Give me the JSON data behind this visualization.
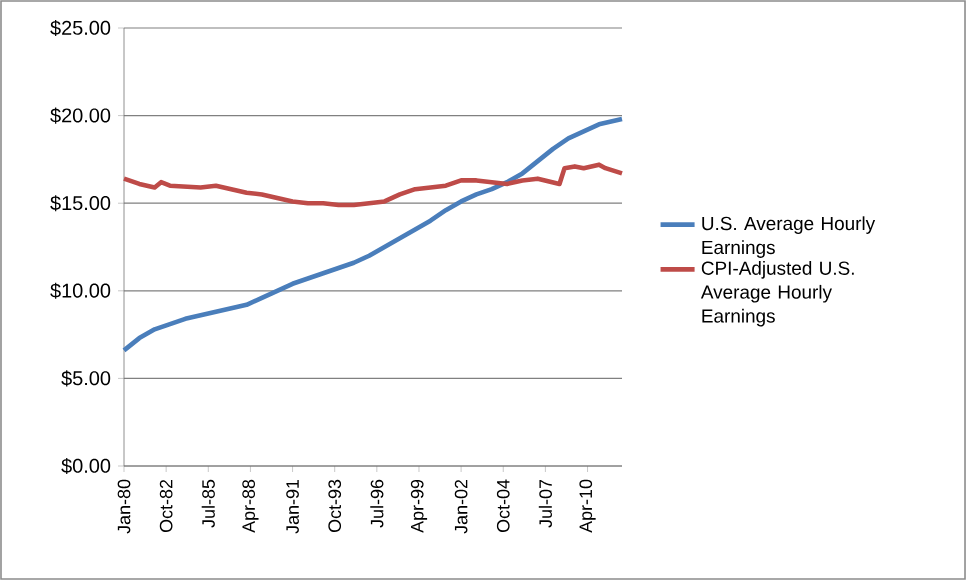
{
  "chart_data": {
    "type": "line",
    "x": [
      "1980-01",
      "1981-01",
      "1982-01",
      "1983-01",
      "1984-01",
      "1985-01",
      "1986-01",
      "1987-01",
      "1988-01",
      "1989-01",
      "1990-01",
      "1991-01",
      "1992-01",
      "1993-01",
      "1994-01",
      "1995-01",
      "1996-01",
      "1997-01",
      "1998-01",
      "1999-01",
      "2000-01",
      "2001-01",
      "2002-01",
      "2003-01",
      "2004-01",
      "2005-01",
      "2006-01",
      "2007-01",
      "2008-01",
      "2009-01",
      "2010-01",
      "2011-01",
      "2012-07"
    ],
    "series": [
      {
        "name": "U.S. Average Hourly Earnings",
        "color": "#4a7ebb",
        "values": [
          6.6,
          7.3,
          7.8,
          8.1,
          8.4,
          8.6,
          8.8,
          9.0,
          9.2,
          9.6,
          10.0,
          10.4,
          10.7,
          11.0,
          11.3,
          11.6,
          12.0,
          12.5,
          13.0,
          13.5,
          14.0,
          14.6,
          15.1,
          15.5,
          15.8,
          16.2,
          16.7,
          17.4,
          18.1,
          18.7,
          19.1,
          19.5,
          19.8
        ]
      },
      {
        "name": "CPI-Adjusted U.S. Average Hourly Earnings",
        "color": "#be4b48",
        "x": [
          "1980-01",
          "1981-01",
          "1982-01",
          "1982-06",
          "1983-01",
          "1985-01",
          "1986-01",
          "1987-01",
          "1988-01",
          "1989-01",
          "1990-01",
          "1991-01",
          "1992-01",
          "1993-01",
          "1994-01",
          "1995-01",
          "1996-01",
          "1997-01",
          "1998-01",
          "1999-01",
          "2000-01",
          "2001-01",
          "2002-01",
          "2003-01",
          "2004-01",
          "2005-01",
          "2006-01",
          "2007-01",
          "2008-06",
          "2008-10",
          "2009-06",
          "2010-01",
          "2011-01",
          "2011-06",
          "2012-07"
        ],
        "values": [
          16.4,
          16.1,
          15.9,
          16.2,
          16.0,
          15.9,
          16.0,
          15.8,
          15.6,
          15.5,
          15.3,
          15.1,
          15.0,
          15.0,
          14.9,
          14.9,
          15.0,
          15.1,
          15.5,
          15.8,
          15.9,
          16.0,
          16.3,
          16.3,
          16.2,
          16.1,
          16.3,
          16.4,
          16.1,
          17.0,
          17.1,
          17.0,
          17.2,
          17.0,
          16.7
        ]
      }
    ],
    "xlim": [
      "1980-01",
      "2012-07"
    ],
    "xticks": [
      {
        "value": "1980-01",
        "label": "Jan-80"
      },
      {
        "value": "1982-10",
        "label": "Oct-82"
      },
      {
        "value": "1985-07",
        "label": "Jul-85"
      },
      {
        "value": "1988-04",
        "label": "Apr-88"
      },
      {
        "value": "1991-01",
        "label": "Jan-91"
      },
      {
        "value": "1993-10",
        "label": "Oct-93"
      },
      {
        "value": "1996-07",
        "label": "Jul-96"
      },
      {
        "value": "1999-04",
        "label": "Apr-99"
      },
      {
        "value": "2002-01",
        "label": "Jan-02"
      },
      {
        "value": "2004-10",
        "label": "Oct-04"
      },
      {
        "value": "2007-07",
        "label": "Jul-07"
      },
      {
        "value": "2010-04",
        "label": "Apr-10"
      }
    ],
    "ylim": [
      0,
      25
    ],
    "yticks": [
      {
        "value": 0,
        "label": "$0.00"
      },
      {
        "value": 5,
        "label": "$5.00"
      },
      {
        "value": 10,
        "label": "$10.00"
      },
      {
        "value": 15,
        "label": "$15.00"
      },
      {
        "value": 20,
        "label": "$20.00"
      },
      {
        "value": 25,
        "label": "$25.00"
      }
    ],
    "grid": "y",
    "legend": "right",
    "marker": "none",
    "line_style": "solid"
  }
}
